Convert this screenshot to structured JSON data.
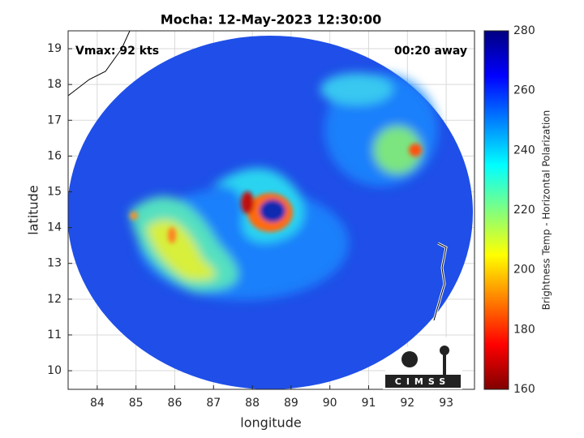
{
  "title": "Mocha: 12-May-2023 12:30:00",
  "annotations": {
    "vmax": "Vmax: 92 kts",
    "away": "00:20 away"
  },
  "x_axis": {
    "label": "longitude",
    "lim": [
      83.25,
      93.73
    ],
    "ticks": [
      84,
      85,
      86,
      87,
      88,
      89,
      90,
      91,
      92,
      93
    ]
  },
  "y_axis": {
    "label": "latitude",
    "lim": [
      9.48,
      19.5
    ],
    "ticks": [
      10,
      11,
      12,
      13,
      14,
      15,
      16,
      17,
      18,
      19
    ]
  },
  "colorbar": {
    "label": "Brightness Temp - Horizontal Polarization",
    "lim": [
      160,
      280
    ],
    "ticks": [
      160,
      180,
      200,
      220,
      240,
      260,
      280
    ]
  },
  "logo": "CIMSS"
}
